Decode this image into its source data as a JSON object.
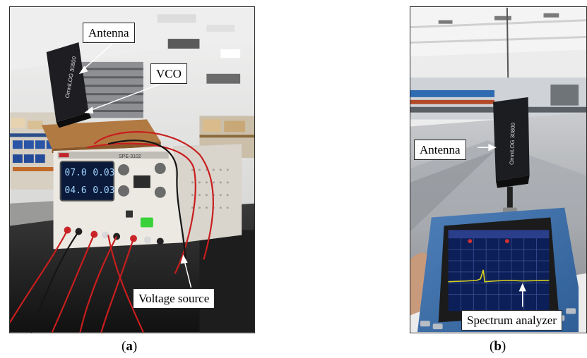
{
  "panel_a": {
    "labels": {
      "antenna": "Antenna",
      "vco": "VCO",
      "voltage_source": "Voltage source"
    },
    "screen_readout": {
      "v1": "07.0",
      "a1": "0.03",
      "v2": "04.6",
      "a2": "0.03"
    },
    "device_model": "SPE-3102",
    "antenna_print": "OmniLOG 30800"
  },
  "panel_b": {
    "labels": {
      "antenna": "Antenna",
      "spectrum_analyzer": "Spectrum analyzer"
    },
    "antenna_print": "OmniLOG 30800"
  },
  "captions": {
    "a_open": "(",
    "a_letter": "a",
    "a_close": ")",
    "b_open": "(",
    "b_letter": "b",
    "b_close": ")"
  },
  "colors": {
    "wire_red": "#c81e1e",
    "wire_black": "#151515",
    "power_led": "#39d13a",
    "analyzer_trace": "#d8d020"
  }
}
